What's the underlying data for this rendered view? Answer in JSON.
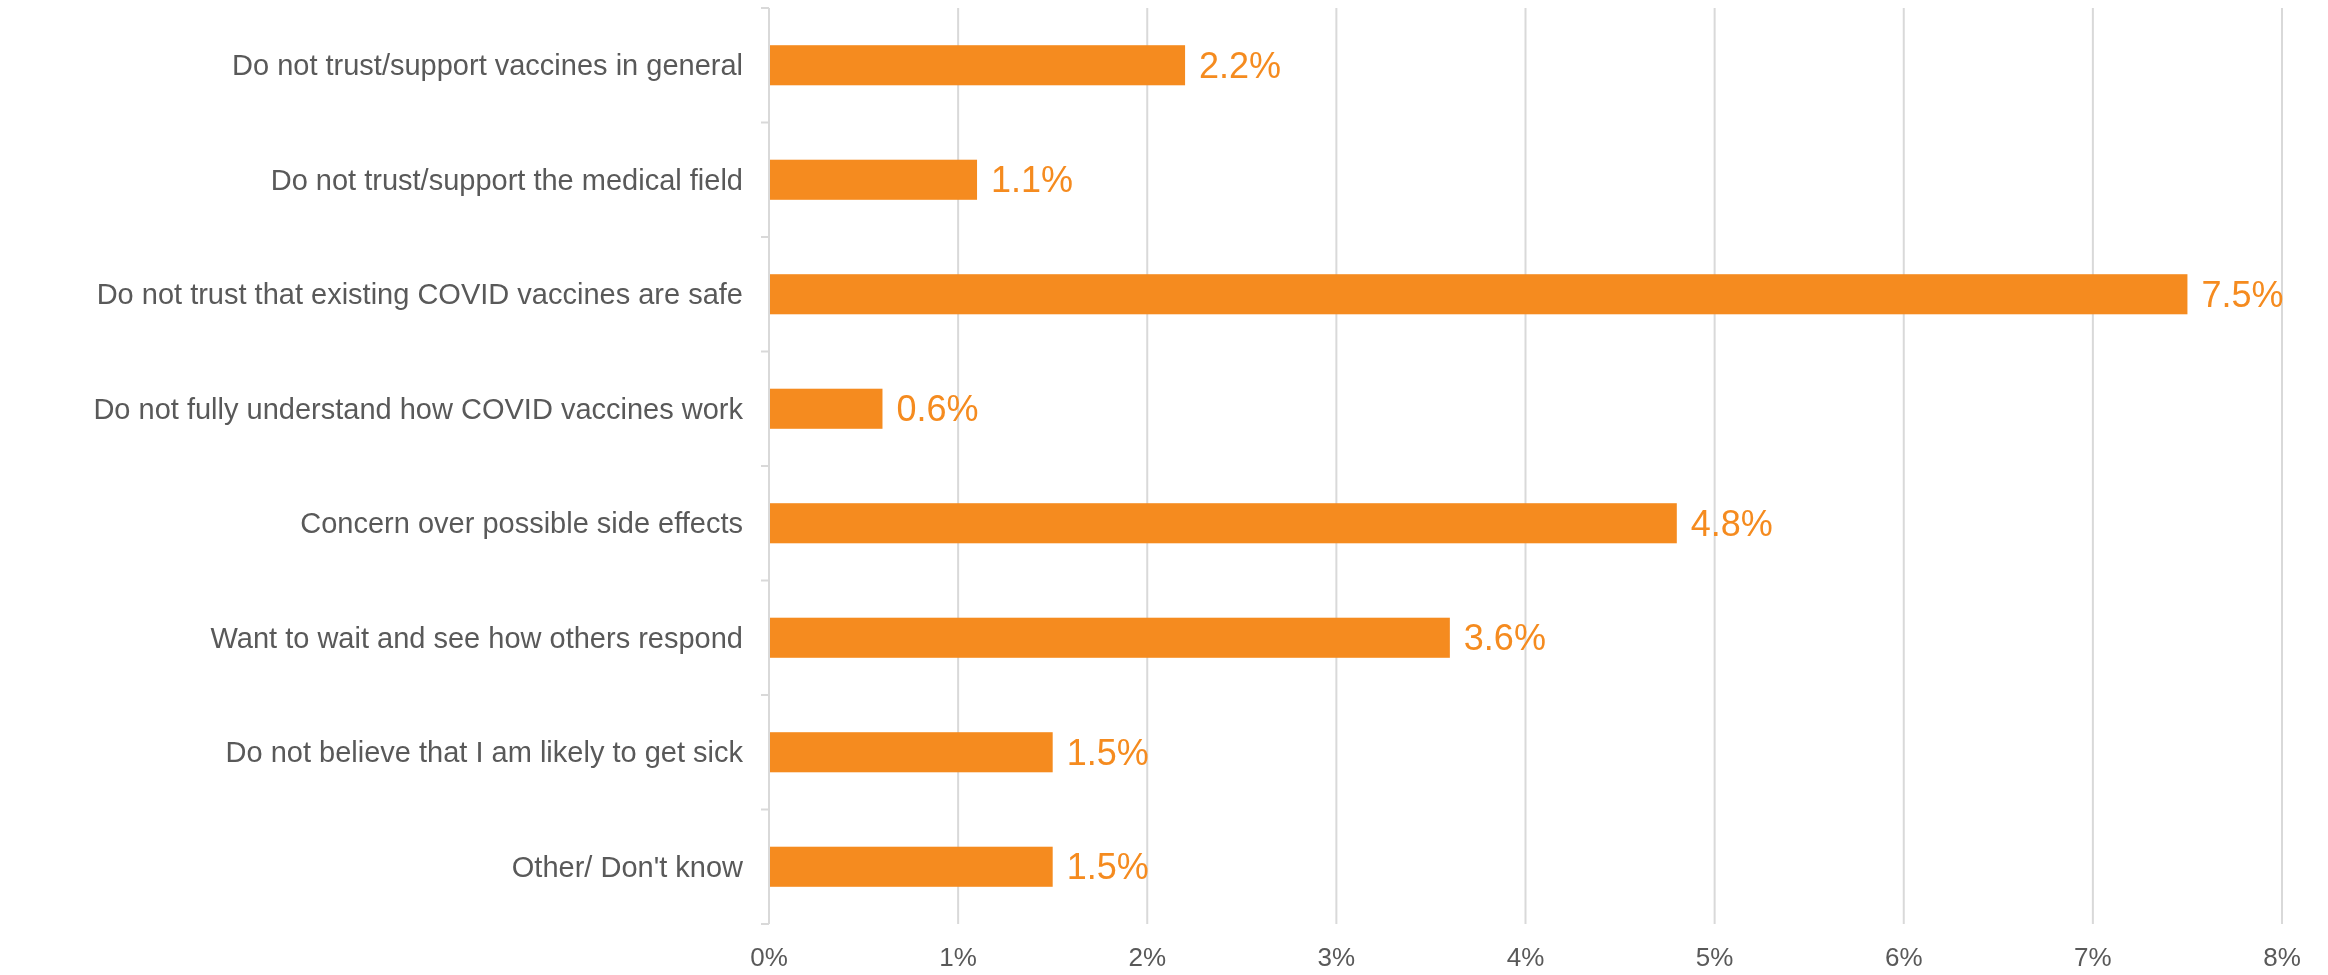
{
  "chart_data": {
    "type": "bar",
    "orientation": "horizontal",
    "categories": [
      "Do not trust/support vaccines in general",
      "Do not trust/support the medical field",
      "Do not trust that existing COVID vaccines are safe",
      "Do not fully understand how COVID vaccines work",
      "Concern over possible side effects",
      "Want to wait and see how others respond",
      "Do not believe that I am likely to get sick",
      "Other/ Don't know"
    ],
    "values": [
      2.2,
      1.1,
      7.5,
      0.6,
      4.8,
      3.6,
      1.5,
      1.5
    ],
    "color": "#f58b1f",
    "xlim": [
      0,
      8
    ],
    "xticks": [
      {
        "value": 0,
        "label": "0%"
      },
      {
        "value": 1,
        "label": "1%"
      },
      {
        "value": 2,
        "label": "2%"
      },
      {
        "value": 3,
        "label": "3%"
      },
      {
        "value": 4,
        "label": "4%"
      },
      {
        "value": 5,
        "label": "5%"
      },
      {
        "value": 6,
        "label": "6%"
      },
      {
        "value": 7,
        "label": "7%"
      },
      {
        "value": 8,
        "label": "8%"
      }
    ],
    "value_labels": [
      "2.2%",
      "1.1%",
      "7.5%",
      "0.6%",
      "4.8%",
      "3.6%",
      "1.5%",
      "1.5%"
    ],
    "grid": "x"
  }
}
